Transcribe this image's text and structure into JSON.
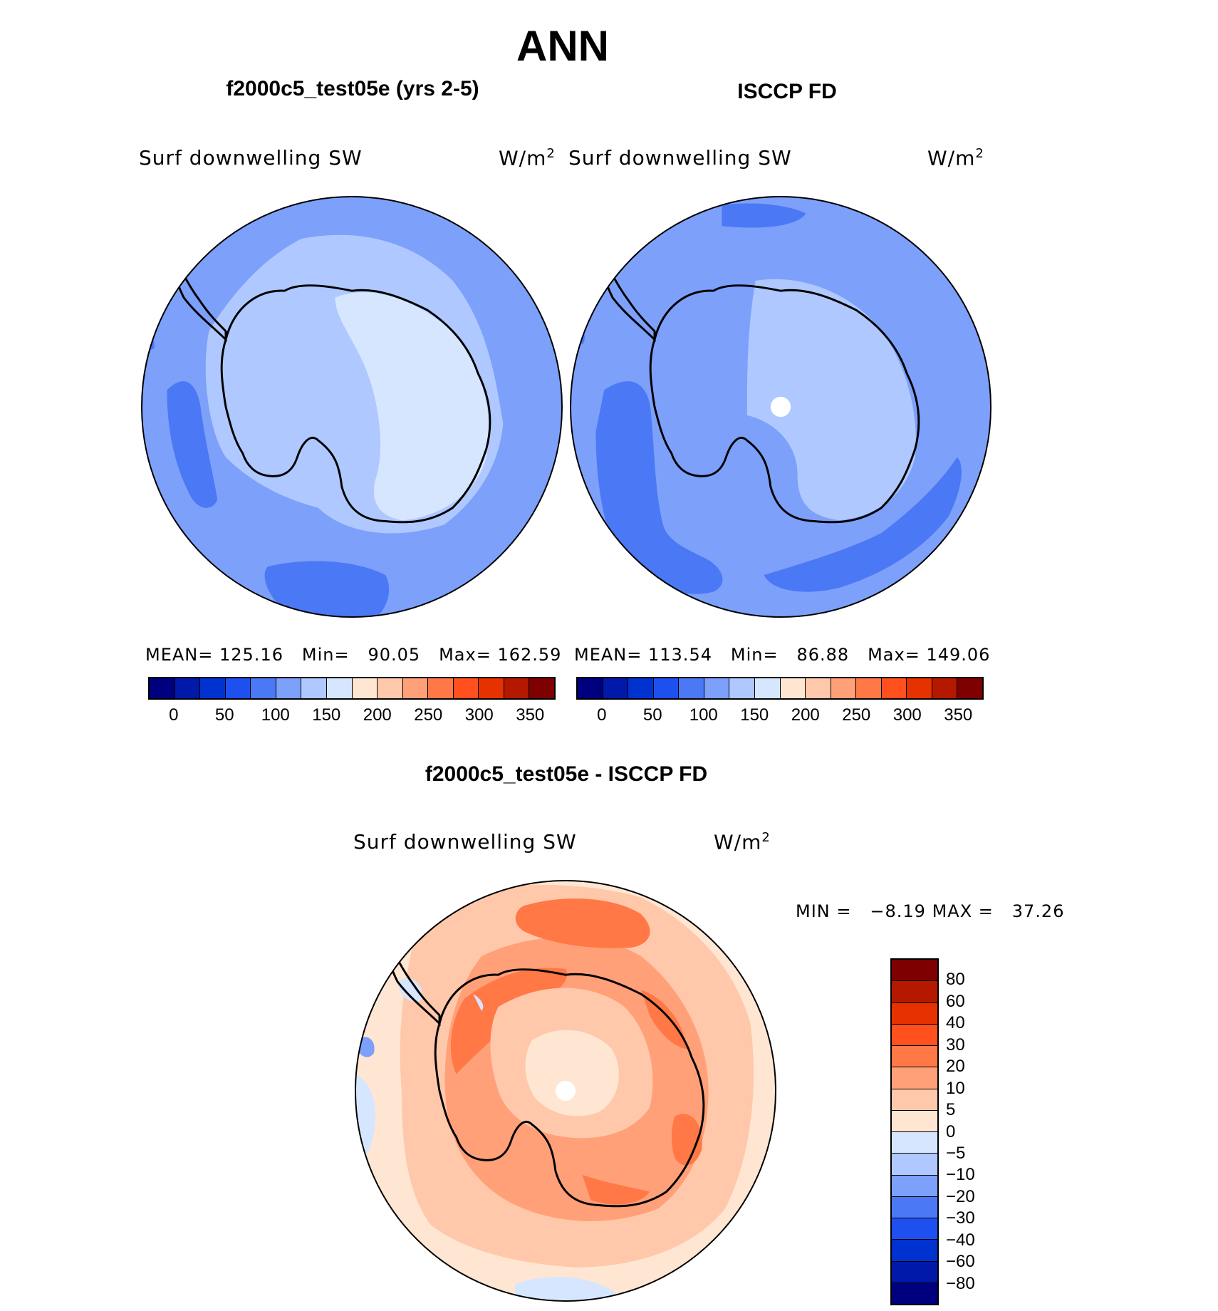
{
  "title": "ANN",
  "panels": [
    {
      "title": "f2000c5_test05e (yrs 2-5)",
      "variable": "Surf downwelling SW",
      "units": "W/m",
      "units_exp": "2",
      "stats": {
        "mean_label": "MEAN=",
        "mean": "125.16",
        "min_label": "Min=",
        "min": "90.05",
        "max_label": "Max=",
        "max": "162.59"
      }
    },
    {
      "title": "ISCCP FD",
      "variable": "Surf downwelling SW",
      "units": "W/m",
      "units_exp": "2",
      "stats": {
        "mean_label": "MEAN=",
        "mean": "113.54",
        "min_label": "Min=",
        "min": "86.88",
        "max_label": "Max=",
        "max": "149.06"
      }
    }
  ],
  "difference": {
    "title": "f2000c5_test05e - ISCCP FD",
    "variable": "Surf downwelling SW",
    "units": "W/m",
    "units_exp": "2",
    "stats": {
      "min_label": "MIN =",
      "min": "−8.19",
      "max_label": "MAX =",
      "max": "37.26"
    }
  },
  "colorbar_top": {
    "colors": [
      "#00007f",
      "#0019a8",
      "#0032d0",
      "#1e50f0",
      "#4b78f5",
      "#7da0fa",
      "#afc8ff",
      "#d7e6ff",
      "#ffe6d2",
      "#ffc8aa",
      "#ffa078",
      "#ff7846",
      "#ff501e",
      "#e63200",
      "#b41900",
      "#7f0000"
    ],
    "labels": [
      "0",
      "50",
      "100",
      "150",
      "200",
      "250",
      "300",
      "350"
    ]
  },
  "colorbar_diff": {
    "colors": [
      "#7f0000",
      "#b41900",
      "#e63200",
      "#ff501e",
      "#ff7846",
      "#ffa078",
      "#ffc8aa",
      "#ffe6d2",
      "#d7e6ff",
      "#afc8ff",
      "#7da0fa",
      "#4b78f5",
      "#1e50f0",
      "#0032d0",
      "#0019a8",
      "#00007f"
    ],
    "labels": [
      "80",
      "60",
      "40",
      "30",
      "20",
      "10",
      "5",
      "0",
      "−5",
      "−10",
      "−20",
      "−30",
      "−40",
      "−60",
      "−80"
    ]
  }
}
